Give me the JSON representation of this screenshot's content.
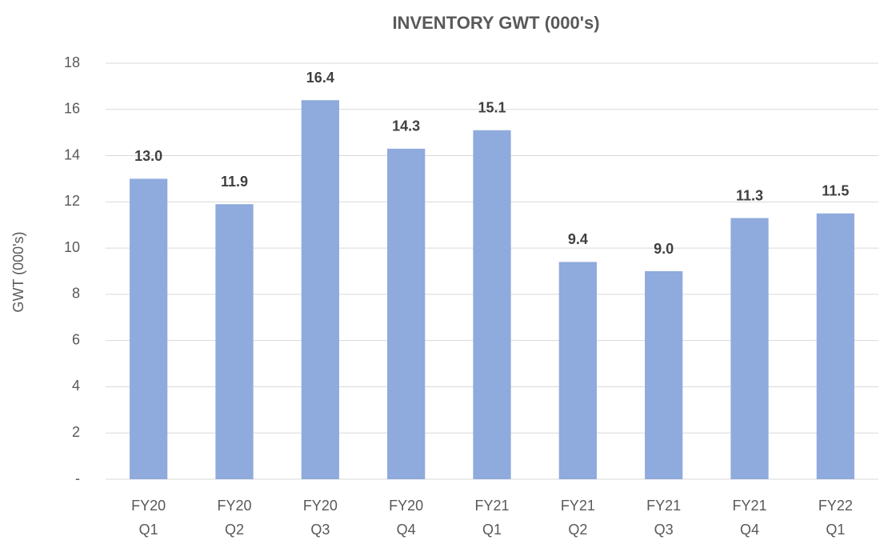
{
  "chart_data": {
    "type": "bar",
    "title": "INVENTORY GWT (000's)",
    "y_label": "GWT (000's)",
    "categories": [
      "FY20 Q1",
      "FY20 Q2",
      "FY20 Q3",
      "FY20 Q4",
      "FY21 Q1",
      "FY21 Q2",
      "FY21 Q3",
      "FY21 Q4",
      "FY22 Q1"
    ],
    "values": [
      13,
      11.9,
      16.4,
      14.3,
      15.1,
      9.4,
      9,
      11.3,
      11.5
    ],
    "value_labels": [
      "13.0",
      "11.9",
      "16.4",
      "14.3",
      "15.1",
      "9.4",
      "9.0",
      "11.3",
      "11.5"
    ],
    "color": "#8faadc",
    "ylim": [
      0,
      18
    ],
    "yticks": [
      {
        "value": 0,
        "label": "-"
      },
      2,
      4,
      6,
      8,
      10,
      12,
      14,
      16,
      18
    ],
    "grid": true
  }
}
